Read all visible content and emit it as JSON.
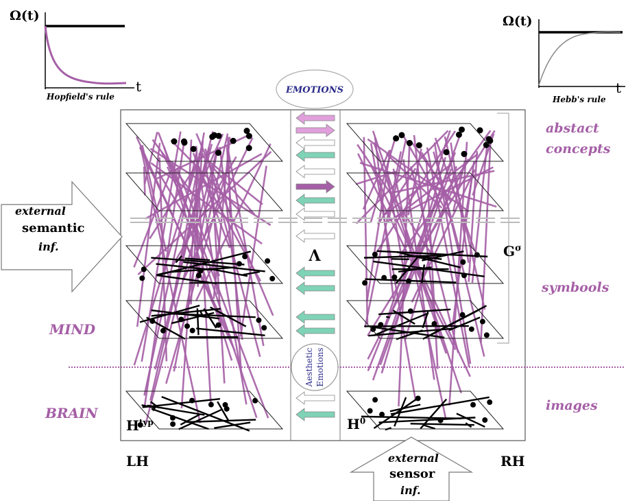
{
  "plots": {
    "left": {
      "omega_label": "Ω(t)",
      "t_label": "t",
      "caption": "Hopfield's rule"
    },
    "right": {
      "omega_label": "Ω(t)",
      "t_label": "t",
      "caption": "Hebb's rule"
    }
  },
  "center": {
    "emotions": "EMOTIONS",
    "lambda": "Λ",
    "aesthetic_line1": "Aesthetic",
    "aesthetic_line2": "Emotions"
  },
  "labels": {
    "abstract_line1": "abstact",
    "abstract_line2": "concepts",
    "symbols": "symbools",
    "images": "images",
    "mind": "MIND",
    "brain": "BRAIN",
    "g_sigma": "G",
    "g_sigma_sup": "σ",
    "h_typ": "H",
    "h_typ_sup": "typ",
    "h_zero": "H",
    "h_zero_sup": "0",
    "lh": "LH",
    "rh": "RH"
  },
  "external_semantic": {
    "line1": "external",
    "line2": "semantic",
    "line3": "inf."
  },
  "external_sensor": {
    "line1": "external",
    "line2": "sensor",
    "line3": "inf."
  },
  "colors": {
    "purple": "#a55fa6",
    "green": "#7fd3b6",
    "pink": "#e0a0dc",
    "black": "#000000"
  }
}
